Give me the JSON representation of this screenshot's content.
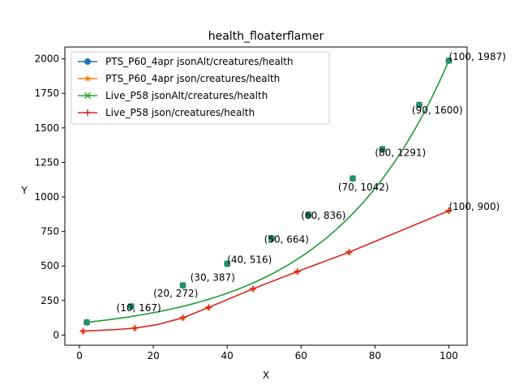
{
  "chart_data": {
    "type": "line",
    "title": "health_floaterflamer",
    "xlabel": "X",
    "ylabel": "Y",
    "xlim": [
      -3.95,
      104.95
    ],
    "ylim": [
      -73.9,
      2085.9
    ],
    "xticks": [
      0,
      20,
      40,
      60,
      80,
      100
    ],
    "yticks": [
      0,
      250,
      500,
      750,
      1000,
      1250,
      1500,
      1750,
      2000
    ],
    "grid": false,
    "legend_position": "top-left",
    "series": [
      {
        "name": "PTS_P60_4apr jsonAlt/creatures/health",
        "color": "#1f77b4",
        "marker": "circle",
        "x": [
          2,
          14,
          28,
          40,
          52,
          62,
          74,
          82,
          92,
          100
        ],
        "y": [
          92,
          207,
          360,
          516,
          700,
          870,
          1134,
          1346,
          1667,
          1987
        ]
      },
      {
        "name": "PTS_P60_4apr json/creatures/health",
        "color": "#ff7f0e",
        "marker": "star",
        "x": [
          1,
          15,
          28,
          35,
          47,
          59,
          73,
          100
        ],
        "y": [
          28,
          50,
          125,
          200,
          335,
          460,
          600,
          900
        ]
      },
      {
        "name": "Live_P58 jsonAlt/creatures/health",
        "color": "#2ca02c",
        "marker": "x",
        "x": [
          2,
          14,
          28,
          40,
          52,
          62,
          74,
          82,
          92,
          100
        ],
        "y": [
          92,
          207,
          360,
          516,
          700,
          870,
          1134,
          1346,
          1667,
          1987
        ]
      },
      {
        "name": "Live_P58 json/creatures/health",
        "color": "#d62728",
        "marker": "plus",
        "x": [
          1,
          15,
          28,
          35,
          47,
          59,
          73,
          100
        ],
        "y": [
          28,
          50,
          125,
          200,
          335,
          460,
          600,
          900
        ]
      }
    ],
    "line_knots": [
      {
        "x": [
          2,
          100
        ],
        "y": [
          92,
          1987
        ]
      },
      {
        "x": [
          1,
          10,
          15,
          21,
          28,
          35,
          47,
          59,
          73,
          100
        ],
        "y": [
          28,
          40,
          50,
          75,
          125,
          200,
          335,
          460,
          600,
          900
        ]
      }
    ],
    "annotations": [
      {
        "text": "(10, 167)",
        "x": 10,
        "y": 167
      },
      {
        "text": "(20, 272)",
        "x": 20,
        "y": 272
      },
      {
        "text": "(30, 387)",
        "x": 30,
        "y": 387
      },
      {
        "text": "(40, 516)",
        "x": 40,
        "y": 516
      },
      {
        "text": "(50, 664)",
        "x": 50,
        "y": 664
      },
      {
        "text": "(60, 836)",
        "x": 60,
        "y": 836
      },
      {
        "text": "(70, 1042)",
        "x": 70,
        "y": 1042
      },
      {
        "text": "(80, 1291)",
        "x": 80,
        "y": 1291
      },
      {
        "text": "(90, 1600)",
        "x": 90,
        "y": 1600
      },
      {
        "text": "(100, 1987)",
        "x": 100,
        "y": 1987
      },
      {
        "text": "(100, 900)",
        "x": 100,
        "y": 900
      }
    ]
  }
}
